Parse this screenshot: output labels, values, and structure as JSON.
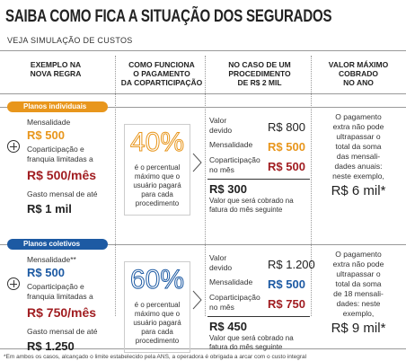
{
  "header": {
    "title": "SAIBA COMO FICA A SITUAÇÃO DOS SEGURADOS",
    "subtitle": "VEJA SIMULAÇÃO DE CUSTOS"
  },
  "columns": [
    [
      "EXEMPLO NA",
      "NOVA REGRA"
    ],
    [
      "COMO FUNCIONA",
      "O PAGAMENTO",
      "DA COPARTICIPAÇÃO"
    ],
    [
      "NO CASO DE UM",
      "PROCEDIMENTO",
      "DE R$ 2 MIL"
    ],
    [
      "VALOR MÁXIMO",
      "COBRADO",
      "NO ANO"
    ]
  ],
  "sections": [
    {
      "label": "Planos individuais",
      "rule": {
        "fee_label": "Mensalidade",
        "fee": "R$ 500",
        "limit_label": [
          "Coparticipação e",
          "franquia limitadas a"
        ],
        "limit": "R$ 500/mês",
        "total_label": "Gasto mensal de até",
        "total": "R$ 1 mil"
      },
      "percent": {
        "value": "40%",
        "note": [
          "é o percentual",
          "máximo que o",
          "usuário pagará",
          "para cada",
          "procedimento"
        ]
      },
      "example": {
        "rows": [
          {
            "label": [
              "Valor",
              "devido"
            ],
            "value": "R$ 800"
          },
          {
            "label": [
              "Mensalidade"
            ],
            "value": "R$ 500"
          },
          {
            "label": [
              "Coparticipação",
              "no mês"
            ],
            "value": "R$ 500"
          }
        ],
        "result": "R$ 300",
        "result_note": [
          "Valor que será cobrado na",
          "fatura do mês seguinte"
        ]
      },
      "max": {
        "note": [
          "O pagamento",
          "extra não pode",
          "ultrapassar o",
          "total da soma",
          "das mensali-",
          "dades anuais:",
          "neste exemplo,"
        ],
        "value": "R$ 6 mil*"
      }
    },
    {
      "label": "Planos coletivos",
      "rule": {
        "fee_label": "Mensalidade**",
        "fee": "R$ 500",
        "limit_label": [
          "Coparticipação e",
          "franquia limitadas a"
        ],
        "limit": "R$ 750/mês",
        "total_label": "Gasto mensal de até",
        "total": "R$ 1.250"
      },
      "percent": {
        "value": "60%",
        "note": [
          "é o percentual",
          "máximo que o",
          "usuário pagará",
          "para cada",
          "procedimento"
        ]
      },
      "example": {
        "rows": [
          {
            "label": [
              "Valor",
              "devido"
            ],
            "value": "R$ 1.200"
          },
          {
            "label": [
              "Mensalidade"
            ],
            "value": "R$ 500"
          },
          {
            "label": [
              "Coparticipação",
              "no mês"
            ],
            "value": "R$ 750"
          }
        ],
        "result": "R$ 450",
        "result_note": [
          "Valor que será cobrado na",
          "fatura do mês seguinte"
        ]
      },
      "max": {
        "note": [
          "O pagamento",
          "extra não pode",
          "ultrapassar o",
          "total da soma",
          "de 18 mensali-",
          "dades: neste",
          "exemplo,"
        ],
        "value": "R$ 9 mil*"
      }
    }
  ],
  "footnote": "*Em ambos os casos, alcançado o limite estabelecido pela ANS, a operadora é obrigada a arcar com o custo integral"
}
